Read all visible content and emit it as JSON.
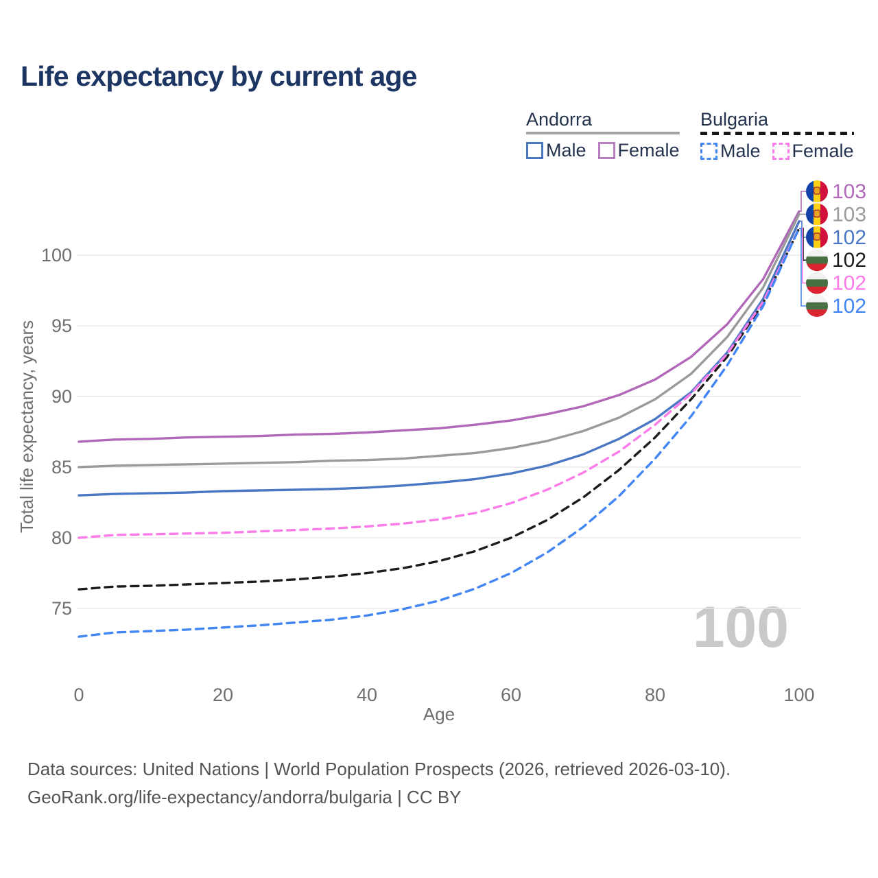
{
  "header": {
    "title": "Life expectancy by current age"
  },
  "legend": {
    "groups": [
      {
        "country": "Andorra",
        "line_style": "solid",
        "items": [
          {
            "label": "Male",
            "color": "#4a77c4"
          },
          {
            "label": "Female",
            "color": "#b87fc0"
          }
        ]
      },
      {
        "country": "Bulgaria",
        "line_style": "dashed",
        "items": [
          {
            "label": "Male",
            "color": "#4285f4"
          },
          {
            "label": "Female",
            "color": "#fb7be8"
          }
        ]
      }
    ]
  },
  "chart_data": {
    "type": "line",
    "title": "Life expectancy by current age",
    "xlabel": "Age",
    "ylabel": "Total life expectancy, years",
    "watermark": "100",
    "grid": "horizontal-only",
    "legend_position": "top-right",
    "xlim": [
      0,
      100
    ],
    "ylim": [
      72,
      104
    ],
    "x_ticks": [
      0,
      20,
      40,
      60,
      80,
      100
    ],
    "y_ticks": [
      75,
      80,
      85,
      90,
      95,
      100
    ],
    "x": [
      0,
      5,
      10,
      15,
      20,
      25,
      30,
      35,
      40,
      45,
      50,
      55,
      60,
      65,
      70,
      75,
      80,
      85,
      90,
      95,
      100
    ],
    "series": [
      {
        "id": "andorra-female",
        "name": "Andorra Female",
        "country": "Andorra",
        "sex": "Female",
        "color": "#b168b8",
        "dashed": false,
        "flag": "andorra-flag",
        "end_label": "103",
        "values": [
          86.8,
          86.95,
          87.0,
          87.1,
          87.15,
          87.2,
          87.3,
          87.35,
          87.45,
          87.6,
          87.75,
          88.0,
          88.3,
          88.75,
          89.3,
          90.1,
          91.2,
          92.8,
          95.1,
          98.3,
          103.1
        ]
      },
      {
        "id": "andorra-total",
        "name": "Andorra",
        "country": "Andorra",
        "sex": "Both",
        "color": "#9a9a9a",
        "dashed": false,
        "flag": "andorra-flag",
        "end_label": "103",
        "values": [
          85.0,
          85.1,
          85.15,
          85.2,
          85.25,
          85.3,
          85.35,
          85.45,
          85.5,
          85.6,
          85.8,
          86.0,
          86.35,
          86.85,
          87.55,
          88.5,
          89.8,
          91.6,
          94.2,
          97.7,
          102.9
        ]
      },
      {
        "id": "andorra-male",
        "name": "Andorra Male",
        "country": "Andorra",
        "sex": "Male",
        "color": "#4a77c4",
        "dashed": false,
        "flag": "andorra-flag",
        "end_label": "102",
        "values": [
          83.0,
          83.1,
          83.15,
          83.2,
          83.3,
          83.35,
          83.4,
          83.45,
          83.55,
          83.7,
          83.9,
          84.15,
          84.55,
          85.1,
          85.9,
          87.0,
          88.4,
          90.3,
          93.1,
          96.9,
          102.4
        ]
      },
      {
        "id": "bulgaria-total",
        "name": "Bulgaria",
        "country": "Bulgaria",
        "sex": "Both",
        "color": "#1c1c1c",
        "dashed": true,
        "flag": "bulgaria-flag",
        "end_label": "102",
        "values": [
          76.35,
          76.55,
          76.6,
          76.7,
          76.8,
          76.9,
          77.05,
          77.25,
          77.5,
          77.85,
          78.35,
          79.05,
          80.0,
          81.25,
          82.85,
          84.8,
          87.1,
          89.8,
          92.8,
          96.6,
          101.9
        ]
      },
      {
        "id": "bulgaria-female",
        "name": "Bulgaria Female",
        "country": "Bulgaria",
        "sex": "Female",
        "color": "#fb7be8",
        "dashed": true,
        "flag": "bulgaria-flag",
        "end_label": "102",
        "values": [
          80.0,
          80.2,
          80.25,
          80.3,
          80.35,
          80.45,
          80.55,
          80.65,
          80.8,
          81.0,
          81.3,
          81.75,
          82.45,
          83.4,
          84.6,
          86.1,
          88.0,
          90.2,
          93.0,
          96.7,
          101.9
        ]
      },
      {
        "id": "bulgaria-male",
        "name": "Bulgaria Male",
        "country": "Bulgaria",
        "sex": "Male",
        "color": "#4285f4",
        "dashed": true,
        "flag": "bulgaria-flag",
        "end_label": "102",
        "values": [
          73.0,
          73.3,
          73.4,
          73.5,
          73.65,
          73.8,
          74.0,
          74.2,
          74.5,
          74.95,
          75.55,
          76.4,
          77.5,
          78.95,
          80.75,
          82.95,
          85.6,
          88.6,
          92.2,
          96.4,
          101.9
        ]
      }
    ]
  },
  "footer": {
    "line1": "Data sources: United Nations | World Population Prospects (2026, retrieved 2026-03-10).",
    "line2": "GeoRank.org/life-expectancy/andorra/bulgaria | CC BY"
  }
}
